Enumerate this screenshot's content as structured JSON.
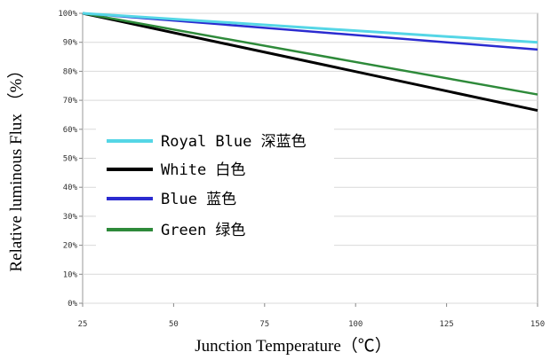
{
  "chart_data": {
    "type": "line",
    "xlabel": "Junction Temperature（℃）",
    "ylabel": "Relative luminous Flux （%）",
    "x_ticks": [
      "25",
      "50",
      "75",
      "100",
      "125",
      "150"
    ],
    "y_ticks": [
      "0%",
      "10%",
      "20%",
      "30%",
      "40%",
      "50%",
      "60%",
      "70%",
      "80%",
      "90%",
      "100%"
    ],
    "xlim": [
      25,
      150
    ],
    "ylim": [
      0,
      100
    ],
    "grid": "horizontal",
    "legend_position": "left",
    "series": [
      {
        "name": "Royal Blue 深蓝色",
        "color": "#55d6e6",
        "x": [
          25,
          150
        ],
        "y": [
          100,
          90
        ]
      },
      {
        "name": "White 白色",
        "color": "#000000",
        "x": [
          25,
          150
        ],
        "y": [
          100,
          66.5
        ]
      },
      {
        "name": "Blue 蓝色",
        "color": "#2b2bd0",
        "x": [
          25,
          150
        ],
        "y": [
          100,
          87.5
        ]
      },
      {
        "name": "Green 绿色",
        "color": "#2e8a3a",
        "x": [
          25,
          150
        ],
        "y": [
          100,
          72
        ]
      }
    ]
  }
}
